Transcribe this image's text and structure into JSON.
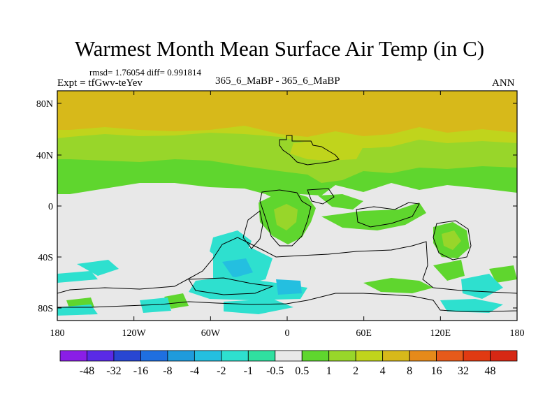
{
  "title": "Warmest Month Mean Surface Air Temp (in C)",
  "stats_line": "rmsd= 1.76054 diff= 0.991814",
  "expt_label": "Expt = tfGwv-teYev",
  "center_label": "365_6_MaBP - 365_6_MaBP",
  "right_label": "ANN",
  "lat_ticks": [
    "80N",
    "40N",
    "0",
    "40S",
    "80S"
  ],
  "lon_ticks": [
    "180",
    "120W",
    "60W",
    "0",
    "60E",
    "120E",
    "180"
  ],
  "colorbar": {
    "labels": [
      "-48",
      "-32",
      "-16",
      "-8",
      "-4",
      "-2",
      "-1",
      "-0.5",
      "0.5",
      "1",
      "2",
      "4",
      "8",
      "16",
      "32",
      "48"
    ],
    "colors": [
      "#8a1ee6",
      "#5a2ae6",
      "#2846d2",
      "#1f6fe0",
      "#1f9bdc",
      "#24bfe0",
      "#2ee0cf",
      "#30e0a0",
      "#e8e8e8",
      "#5fd62e",
      "#98d62a",
      "#c0d41c",
      "#d7b91a",
      "#e58a1a",
      "#e65a1a",
      "#e03a12",
      "#d62814"
    ]
  },
  "colors": {
    "no_change": "#e8e8e8",
    "band_8": "#d7b91a",
    "band_4": "#c0d41c",
    "band_2": "#98d62a",
    "band_1": "#5fd62e",
    "band_neg1": "#2ee0cf",
    "band_neg2": "#24bfe0",
    "coastline": "#000000"
  }
}
